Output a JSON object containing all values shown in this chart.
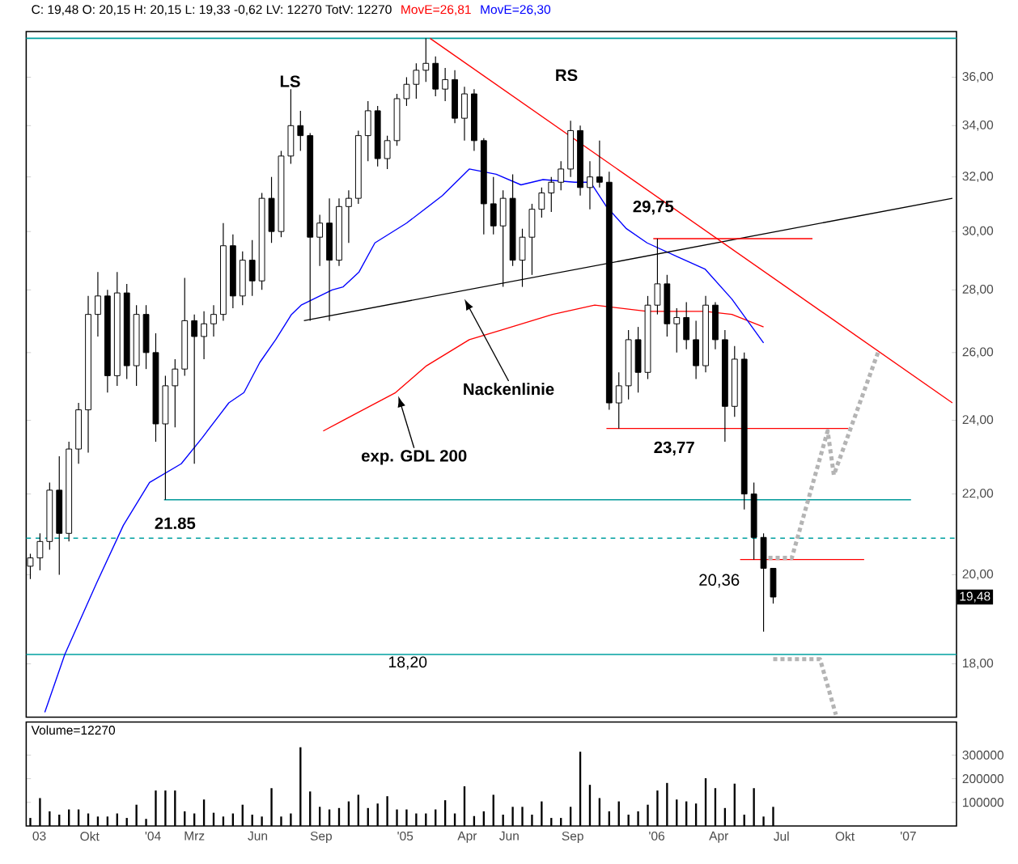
{
  "chart_data": [
    {
      "type": "candlestick",
      "title": "C: 19,48 O: 20,15 H: 20,15 L: 19,33 -0,62 LV: 12270 TotV: 12270",
      "log": true,
      "legend": "top",
      "tick_labels": "y",
      "color": "#000000",
      "xlim": [
        "2003-07-01",
        "2007-03-12"
      ],
      "ylim": [
        16.9,
        38.0
      ],
      "yticks": [
        {
          "value": 18,
          "label": "18,00"
        },
        {
          "value": 20,
          "label": "20,00"
        },
        {
          "value": 22,
          "label": "22,00"
        },
        {
          "value": 24,
          "label": "24,00"
        },
        {
          "value": 26,
          "label": "26,00"
        },
        {
          "value": 28,
          "label": "28,00"
        },
        {
          "value": 30,
          "label": "30,00"
        },
        {
          "value": 32,
          "label": "32,00"
        },
        {
          "value": 34,
          "label": "34,00"
        },
        {
          "value": 36,
          "label": "36,00"
        }
      ],
      "x": [
        "2003-07-07",
        "2003-07-21",
        "2003-08-04",
        "2003-08-18",
        "2003-09-01",
        "2003-09-15",
        "2003-09-29",
        "2003-10-13",
        "2003-10-27",
        "2003-11-10",
        "2003-11-24",
        "2003-12-08",
        "2003-12-22",
        "2004-01-05",
        "2004-01-19",
        "2004-02-02",
        "2004-02-16",
        "2004-03-01",
        "2004-03-15",
        "2004-03-29",
        "2004-04-12",
        "2004-04-26",
        "2004-05-10",
        "2004-05-24",
        "2004-06-07",
        "2004-06-21",
        "2004-07-05",
        "2004-07-19",
        "2004-08-02",
        "2004-08-16",
        "2004-08-30",
        "2004-09-13",
        "2004-09-27",
        "2004-10-11",
        "2004-10-25",
        "2004-11-08",
        "2004-11-22",
        "2004-12-06",
        "2004-12-20",
        "2005-01-03",
        "2005-01-17",
        "2005-01-31",
        "2005-02-14",
        "2005-02-28",
        "2005-03-14",
        "2005-03-28",
        "2005-04-11",
        "2005-04-25",
        "2005-05-09",
        "2005-05-23",
        "2005-06-06",
        "2005-06-20",
        "2005-07-04",
        "2005-07-18",
        "2005-08-01",
        "2005-08-15",
        "2005-08-29",
        "2005-09-12",
        "2005-09-26",
        "2005-10-10",
        "2005-10-24",
        "2005-11-07",
        "2005-11-21",
        "2005-12-05",
        "2005-12-19",
        "2006-01-02",
        "2006-01-16",
        "2006-01-30",
        "2006-02-13",
        "2006-02-27",
        "2006-03-13",
        "2006-03-27",
        "2006-04-10",
        "2006-04-24",
        "2006-05-08",
        "2006-05-22",
        "2006-06-05",
        "2006-06-19"
      ],
      "ohlc": [
        [
          20.2,
          20.5,
          19.9,
          20.4
        ],
        [
          20.4,
          21.0,
          20.1,
          20.8
        ],
        [
          20.8,
          22.3,
          20.6,
          22.1
        ],
        [
          22.1,
          23.0,
          20.0,
          21.0
        ],
        [
          21.0,
          23.4,
          20.8,
          23.2
        ],
        [
          23.2,
          24.5,
          22.8,
          24.3
        ],
        [
          24.3,
          27.8,
          23.1,
          27.2
        ],
        [
          27.2,
          28.6,
          26.5,
          27.8
        ],
        [
          27.8,
          28.0,
          24.8,
          25.3
        ],
        [
          25.3,
          28.6,
          25.0,
          27.9
        ],
        [
          27.9,
          28.2,
          25.2,
          25.6
        ],
        [
          25.6,
          27.5,
          25.0,
          27.2
        ],
        [
          27.2,
          27.5,
          25.5,
          26.0
        ],
        [
          26.0,
          26.6,
          23.4,
          23.9
        ],
        [
          23.9,
          25.3,
          21.85,
          25.0
        ],
        [
          25.0,
          25.8,
          23.8,
          25.5
        ],
        [
          25.5,
          28.4,
          25.3,
          27.0
        ],
        [
          27.0,
          27.2,
          22.8,
          26.5
        ],
        [
          26.5,
          27.3,
          25.8,
          26.9
        ],
        [
          26.9,
          27.5,
          26.5,
          27.2
        ],
        [
          27.2,
          30.3,
          27.0,
          29.5
        ],
        [
          29.5,
          29.9,
          27.4,
          27.8
        ],
        [
          27.8,
          29.3,
          27.5,
          29.0
        ],
        [
          29.0,
          29.7,
          27.8,
          28.3
        ],
        [
          28.3,
          31.4,
          28.0,
          31.2
        ],
        [
          31.2,
          32.0,
          29.6,
          30.0
        ],
        [
          30.0,
          33.0,
          29.8,
          32.8
        ],
        [
          32.8,
          35.5,
          32.5,
          34.0
        ],
        [
          34.0,
          34.6,
          33.0,
          33.6
        ],
        [
          33.6,
          33.7,
          27.0,
          29.8
        ],
        [
          29.8,
          30.6,
          28.8,
          30.3
        ],
        [
          30.3,
          31.2,
          27.0,
          29.0
        ],
        [
          29.0,
          31.2,
          28.8,
          30.9
        ],
        [
          30.9,
          31.5,
          29.6,
          31.2
        ],
        [
          31.2,
          33.8,
          31.0,
          33.6
        ],
        [
          33.6,
          35.0,
          32.6,
          34.6
        ],
        [
          34.6,
          34.8,
          32.4,
          32.7
        ],
        [
          32.7,
          33.6,
          32.3,
          33.4
        ],
        [
          33.4,
          35.3,
          33.2,
          35.1
        ],
        [
          35.1,
          36.0,
          34.8,
          35.7
        ],
        [
          35.7,
          36.6,
          35.1,
          36.3
        ],
        [
          36.3,
          37.7,
          35.8,
          36.6
        ],
        [
          36.6,
          36.9,
          35.2,
          35.5
        ],
        [
          35.5,
          36.4,
          35.0,
          35.9
        ],
        [
          35.9,
          36.3,
          34.1,
          34.3
        ],
        [
          34.3,
          35.6,
          33.4,
          35.3
        ],
        [
          35.3,
          35.5,
          33.0,
          33.4
        ],
        [
          33.4,
          33.5,
          29.9,
          31.0
        ],
        [
          31.0,
          32.0,
          29.9,
          30.2
        ],
        [
          30.2,
          31.5,
          28.1,
          31.2
        ],
        [
          31.2,
          32.1,
          28.8,
          29.0
        ],
        [
          29.0,
          30.1,
          28.1,
          29.8
        ],
        [
          29.8,
          31.0,
          28.5,
          30.8
        ],
        [
          30.8,
          31.6,
          30.5,
          31.4
        ],
        [
          31.4,
          32.0,
          30.7,
          31.8
        ],
        [
          31.8,
          32.6,
          31.5,
          32.3
        ],
        [
          32.3,
          34.2,
          32.0,
          33.8
        ],
        [
          33.8,
          34.0,
          31.3,
          31.6
        ],
        [
          31.6,
          32.6,
          30.8,
          32.0
        ],
        [
          32.0,
          33.4,
          31.6,
          31.8
        ],
        [
          31.8,
          32.2,
          24.3,
          24.5
        ],
        [
          24.5,
          25.4,
          23.77,
          25.0
        ],
        [
          25.0,
          26.7,
          24.6,
          26.4
        ],
        [
          26.4,
          26.8,
          24.8,
          25.4
        ],
        [
          25.4,
          27.8,
          25.2,
          27.5
        ],
        [
          27.5,
          29.75,
          27.2,
          28.2
        ],
        [
          28.2,
          28.5,
          26.5,
          26.9
        ],
        [
          26.9,
          27.4,
          26.0,
          27.1
        ],
        [
          27.1,
          27.6,
          26.1,
          26.4
        ],
        [
          26.4,
          27.0,
          25.2,
          25.6
        ],
        [
          25.6,
          27.8,
          25.4,
          27.5
        ],
        [
          27.5,
          27.6,
          26.1,
          26.4
        ],
        [
          26.4,
          26.7,
          23.4,
          24.4
        ],
        [
          24.4,
          26.2,
          24.1,
          25.8
        ],
        [
          25.8,
          26.0,
          21.6,
          22.0
        ],
        [
          22.0,
          22.3,
          20.36,
          20.9
        ],
        [
          20.9,
          21.0,
          18.7,
          20.15
        ],
        [
          20.15,
          20.15,
          19.33,
          19.48
        ]
      ],
      "series": [
        {
          "type": "line",
          "name": "MovE=26,81",
          "color": "#ff0000",
          "x": [
            "2004-09-04",
            "2004-10-03",
            "2004-12-18",
            "2005-02-01",
            "2005-04-04",
            "2005-05-20",
            "2005-08-03",
            "2005-10-03",
            "2005-12-18",
            "2006-03-12",
            "2006-04-20",
            "2006-06-05"
          ],
          "values": [
            23.7,
            24.0,
            24.8,
            25.6,
            26.4,
            26.7,
            27.2,
            27.5,
            27.3,
            27.3,
            27.2,
            26.8
          ]
        },
        {
          "type": "line",
          "name": "MovE=26,30",
          "color": "#0000ff",
          "x": [
            "2003-07-28",
            "2003-08-26",
            "2003-10-11",
            "2003-11-19",
            "2003-12-27",
            "2004-02-11",
            "2004-03-12",
            "2004-04-20",
            "2004-05-12",
            "2004-06-04",
            "2004-06-27",
            "2004-07-20",
            "2004-08-03",
            "2004-09-17",
            "2004-10-03",
            "2004-10-26",
            "2004-11-18",
            "2005-01-03",
            "2005-02-24",
            "2005-04-04",
            "2005-05-13",
            "2005-06-18",
            "2005-07-20",
            "2005-09-04",
            "2005-09-27",
            "2005-10-20",
            "2005-11-18",
            "2005-12-18",
            "2006-02-02",
            "2006-03-12",
            "2006-04-20",
            "2006-06-05"
          ],
          "values": [
            17.0,
            18.2,
            19.8,
            21.2,
            22.3,
            22.8,
            23.5,
            24.5,
            24.8,
            25.7,
            26.4,
            27.2,
            27.5,
            28.0,
            28.1,
            28.6,
            29.6,
            30.3,
            31.3,
            32.3,
            32.1,
            31.7,
            31.9,
            31.8,
            31.8,
            30.9,
            30.1,
            29.6,
            29.1,
            28.7,
            27.7,
            26.3
          ]
        },
        {
          "type": "line",
          "color": "#000000",
          "x": [
            "2004-08-07",
            "2007-03-06"
          ],
          "values": [
            27.0,
            31.2
          ]
        },
        {
          "type": "line",
          "color": "#ff0000",
          "x": [
            "2005-02-06",
            "2007-03-06"
          ],
          "values": [
            37.7,
            24.5
          ]
        },
        {
          "type": "line",
          "color": "#ff0000",
          "x": [
            "2005-12-27",
            "2006-08-15"
          ],
          "values": [
            29.75,
            29.75
          ]
        },
        {
          "type": "line",
          "color": "#ff0000",
          "x": [
            "2005-10-20",
            "2006-10-06"
          ],
          "values": [
            23.77,
            23.77
          ]
        },
        {
          "type": "line",
          "color": "#ff0000",
          "x": [
            "2006-05-02",
            "2006-10-29"
          ],
          "values": [
            20.36,
            20.36
          ]
        },
        {
          "type": "line",
          "color": "#009999",
          "x": [
            "2004-01-17",
            "2007-01-05"
          ],
          "values": [
            21.85,
            21.85
          ]
        },
        {
          "type": "line",
          "color": "#b4b4b4",
          "line_style": "dotted",
          "x": [
            "2006-06-12",
            "2006-07-16",
            "2006-09-06",
            "2006-09-15",
            "2006-11-18"
          ],
          "values": [
            20.4,
            20.4,
            23.7,
            22.5,
            26.0
          ]
        },
        {
          "type": "line",
          "color": "#b4b4b4",
          "line_style": "dotted",
          "x": [
            "2006-06-19",
            "2006-08-26",
            "2006-09-18"
          ],
          "values": [
            18.1,
            18.1,
            16.95
          ]
        }
      ],
      "ref_lines": [
        {
          "axis": "y",
          "value": 37.7,
          "color": "#00a0a0"
        },
        {
          "axis": "y",
          "value": 20.88,
          "color": "#00a0a0",
          "line_style": "dashed"
        },
        {
          "axis": "y",
          "value": 18.2,
          "color": "#00a0a0",
          "label": "18,20"
        }
      ],
      "annotations": [
        {
          "text": "LS",
          "x": "2004-07-18",
          "y": 35.5
        },
        {
          "text": "RS",
          "x": "2005-08-23",
          "y": 34.2
        },
        {
          "text": "29,75",
          "x": "2005-12-27",
          "y": 29.75
        },
        {
          "text": "23,77",
          "x": "2005-10-20",
          "y": 23.77
        },
        {
          "text": "21.85",
          "x": "2004-01-17",
          "y": 21.85
        },
        {
          "text": "20,36",
          "x": "2006-05-02",
          "y": 20.36
        },
        {
          "text": "Nackenlinie",
          "x": "2005-03-28",
          "y": 27.7
        },
        {
          "text": "exp. GDL 200",
          "x": "2004-12-22",
          "y": 24.7
        },
        {
          "text": "19,48",
          "y": 19.48
        }
      ]
    },
    {
      "type": "bar",
      "title": "Volume=12270",
      "color": "#000000",
      "xlim": [
        "2003-07-01",
        "2007-03-12"
      ],
      "ylim": [
        0,
        440000
      ],
      "yticks": [
        100000,
        200000,
        300000
      ],
      "xticks": [
        {
          "value": "2003-07-20",
          "label": "03"
        },
        {
          "value": "2003-10-01",
          "label": "Okt"
        },
        {
          "value": "2004-01-01",
          "label": "'04"
        },
        {
          "value": "2004-03-01",
          "label": "Mrz"
        },
        {
          "value": "2004-06-01",
          "label": "Jun"
        },
        {
          "value": "2004-09-01",
          "label": "Sep"
        },
        {
          "value": "2005-01-01",
          "label": "'05"
        },
        {
          "value": "2005-04-01",
          "label": "Apr"
        },
        {
          "value": "2005-06-01",
          "label": "Jun"
        },
        {
          "value": "2005-09-01",
          "label": "Sep"
        },
        {
          "value": "2006-01-01",
          "label": "'06"
        },
        {
          "value": "2006-04-01",
          "label": "Apr"
        },
        {
          "value": "2006-07-01",
          "label": "Jul"
        },
        {
          "value": "2006-10-01",
          "label": "Okt"
        },
        {
          "value": "2007-01-01",
          "label": "'07"
        }
      ],
      "x": [
        "2003-07-07",
        "2003-07-21",
        "2003-08-04",
        "2003-08-18",
        "2003-09-01",
        "2003-09-15",
        "2003-09-29",
        "2003-10-13",
        "2003-10-27",
        "2003-11-10",
        "2003-11-24",
        "2003-12-08",
        "2003-12-22",
        "2004-01-05",
        "2004-01-19",
        "2004-02-02",
        "2004-02-16",
        "2004-03-01",
        "2004-03-15",
        "2004-03-29",
        "2004-04-12",
        "2004-04-26",
        "2004-05-10",
        "2004-05-24",
        "2004-06-07",
        "2004-06-21",
        "2004-07-05",
        "2004-07-19",
        "2004-08-02",
        "2004-08-16",
        "2004-08-30",
        "2004-09-13",
        "2004-09-27",
        "2004-10-11",
        "2004-10-25",
        "2004-11-08",
        "2004-11-22",
        "2004-12-06",
        "2004-12-20",
        "2005-01-03",
        "2005-01-17",
        "2005-01-31",
        "2005-02-14",
        "2005-02-28",
        "2005-03-14",
        "2005-03-28",
        "2005-04-11",
        "2005-04-25",
        "2005-05-09",
        "2005-05-23",
        "2005-06-06",
        "2005-06-20",
        "2005-07-04",
        "2005-07-18",
        "2005-08-01",
        "2005-08-15",
        "2005-08-29",
        "2005-09-12",
        "2005-09-26",
        "2005-10-10",
        "2005-10-24",
        "2005-11-07",
        "2005-11-21",
        "2005-12-05",
        "2005-12-19",
        "2006-01-02",
        "2006-01-16",
        "2006-01-30",
        "2006-02-13",
        "2006-02-27",
        "2006-03-13",
        "2006-03-27",
        "2006-04-10",
        "2006-04-24",
        "2006-05-08",
        "2006-05-22",
        "2006-06-05",
        "2006-06-19"
      ],
      "values": [
        34000,
        118000,
        62000,
        48000,
        70000,
        70000,
        53000,
        40000,
        40000,
        53000,
        34000,
        90000,
        30000,
        150000,
        150000,
        150000,
        62000,
        53000,
        112000,
        56000,
        40000,
        53000,
        90000,
        48000,
        40000,
        160000,
        40000,
        53000,
        333000,
        146000,
        81000,
        70000,
        76000,
        104000,
        132000,
        76000,
        95000,
        126000,
        70000,
        70000,
        53000,
        53000,
        70000,
        109000,
        53000,
        168000,
        42000,
        62000,
        132000,
        48000,
        81000,
        81000,
        48000,
        104000,
        34000,
        34000,
        81000,
        314000,
        174000,
        118000,
        62000,
        104000,
        48000,
        62000,
        90000,
        150000,
        182000,
        112000,
        104000,
        95000,
        202000,
        160000,
        76000,
        179000,
        48000,
        160000,
        40000,
        81000
      ]
    }
  ]
}
